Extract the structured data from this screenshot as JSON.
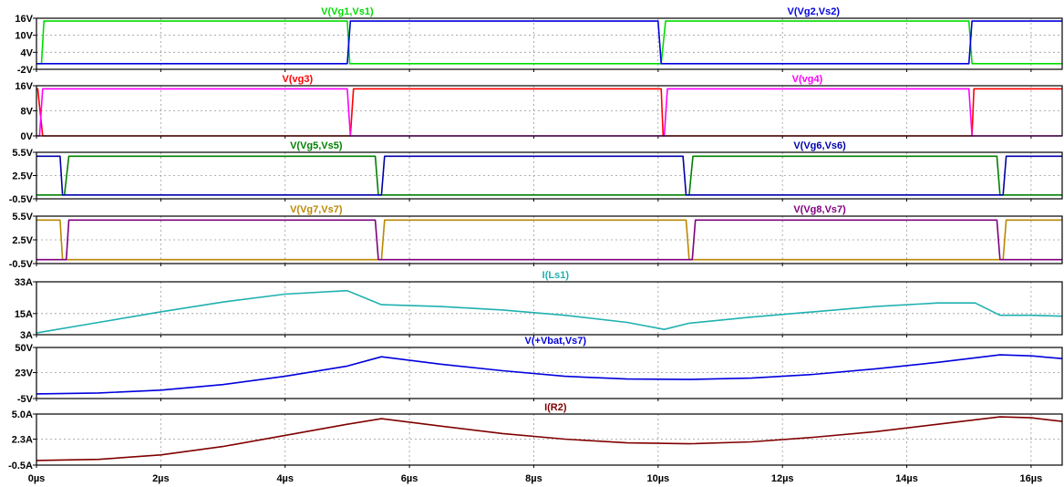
{
  "chart_data": {
    "type": "line",
    "x_unit": "µs",
    "xlim": [
      0,
      16.5
    ],
    "x_ticks": [
      0,
      2,
      4,
      6,
      8,
      10,
      12,
      14,
      16
    ],
    "x_tick_labels": [
      "0µs",
      "2µs",
      "4µs",
      "6µs",
      "8µs",
      "10µs",
      "12µs",
      "14µs",
      "16µs"
    ],
    "grid": true,
    "panes": [
      {
        "ylim": [
          -2,
          16
        ],
        "y_ticks": [
          {
            "value": 16,
            "label": "16V"
          },
          {
            "value": 10,
            "label": "10V"
          },
          {
            "value": 4,
            "label": "4V"
          },
          {
            "value": -2,
            "label": "-2V"
          }
        ],
        "series": [
          {
            "name": "V(Vg1,Vs1)",
            "color": "#00dd00",
            "label_at": 5.0,
            "x": [
              0,
              0.08,
              0.12,
              5.0,
              5.04,
              10.05,
              10.12,
              15.0,
              15.05,
              16.5
            ],
            "y": [
              0,
              0,
              15,
              15,
              0,
              0,
              15,
              15,
              0,
              0
            ]
          },
          {
            "name": "V(Vg2,Vs2)",
            "color": "#0000dd",
            "label_at": 12.5,
            "x": [
              0,
              5.0,
              5.05,
              10.0,
              10.05,
              15.0,
              15.05,
              16.5
            ],
            "y": [
              0,
              0,
              15,
              15,
              0,
              0,
              15,
              15
            ]
          }
        ]
      },
      {
        "ylim": [
          0,
          16
        ],
        "y_ticks": [
          {
            "value": 16,
            "label": "16V"
          },
          {
            "value": 8,
            "label": "8V"
          },
          {
            "value": 0,
            "label": "0V"
          }
        ],
        "series": [
          {
            "name": "V(vg3)",
            "color": "#ff0000",
            "label_at": 4.2,
            "x": [
              0,
              0.02,
              0.1,
              5.05,
              5.1,
              10.05,
              10.08,
              15.05,
              15.08,
              16.5
            ],
            "y": [
              15,
              15,
              0,
              0,
              15,
              15,
              0,
              0,
              15,
              15
            ]
          },
          {
            "name": "V(vg4)",
            "color": "#ff00ff",
            "label_at": 12.4,
            "x": [
              0,
              0.05,
              0.1,
              5.0,
              5.05,
              10.1,
              10.15,
              15.0,
              15.05,
              16.5
            ],
            "y": [
              0,
              0,
              15,
              15,
              0,
              0,
              15,
              15,
              0,
              0
            ]
          }
        ]
      },
      {
        "ylim": [
          -0.5,
          5.5
        ],
        "y_ticks": [
          {
            "value": 5.5,
            "label": "5.5V"
          },
          {
            "value": 2.5,
            "label": "2.5V"
          },
          {
            "value": -0.5,
            "label": "-0.5V"
          }
        ],
        "series": [
          {
            "name": "V(Vg5,Vs5)",
            "color": "#008000",
            "label_at": 4.5,
            "x": [
              0,
              0.45,
              0.52,
              5.45,
              5.5,
              10.5,
              10.56,
              15.45,
              15.5,
              16.5
            ],
            "y": [
              0,
              0,
              5,
              5,
              0,
              0,
              5,
              5,
              0,
              0
            ]
          },
          {
            "name": "V(Vg6,Vs6)",
            "color": "#0000aa",
            "label_at": 12.6,
            "x": [
              0,
              0.38,
              0.42,
              5.55,
              5.6,
              10.4,
              10.45,
              15.55,
              15.6,
              16.5
            ],
            "y": [
              5,
              5,
              0,
              0,
              5,
              5,
              0,
              0,
              5,
              5
            ]
          }
        ]
      },
      {
        "ylim": [
          -0.5,
          5.5
        ],
        "y_ticks": [
          {
            "value": 5.5,
            "label": "5.5V"
          },
          {
            "value": 2.5,
            "label": "2.5V"
          },
          {
            "value": -0.5,
            "label": "-0.5V"
          }
        ],
        "series": [
          {
            "name": "V(Vg7,Vs7)",
            "color": "#bb8800",
            "label_at": 4.5,
            "x": [
              0,
              0.38,
              0.42,
              5.55,
              5.6,
              10.45,
              10.5,
              15.55,
              15.6,
              16.5
            ],
            "y": [
              5,
              5,
              0,
              0,
              5,
              5,
              0,
              0,
              5,
              5
            ]
          },
          {
            "name": "V(Vg8,Vs7)",
            "color": "#800080",
            "label_at": 12.6,
            "x": [
              0,
              0.48,
              0.52,
              5.45,
              5.5,
              10.55,
              10.6,
              15.45,
              15.5,
              16.5
            ],
            "y": [
              0,
              0,
              5,
              5,
              0,
              0,
              5,
              5,
              0,
              0
            ]
          }
        ]
      },
      {
        "ylim": [
          3,
          33
        ],
        "y_ticks": [
          {
            "value": 33,
            "label": "33A"
          },
          {
            "value": 15,
            "label": "15A"
          },
          {
            "value": 3,
            "label": "3A"
          }
        ],
        "series": [
          {
            "name": "I(Ls1)",
            "color": "#20b0b0",
            "label_at": 8.35,
            "x": [
              0,
              1,
              2,
              3,
              4,
              5.0,
              5.55,
              6.5,
              7.5,
              8.5,
              9.5,
              10.1,
              10.5,
              11.5,
              12.5,
              13.5,
              14.5,
              15.1,
              15.5,
              16.0,
              16.5
            ],
            "y": [
              4,
              10,
              16,
              21.5,
              26,
              28,
              20,
              19,
              17,
              14,
              10,
              6,
              9.5,
              13,
              16,
              19,
              21,
              21,
              14,
              14,
              13.5
            ]
          }
        ]
      },
      {
        "ylim": [
          -5,
          50
        ],
        "y_ticks": [
          {
            "value": 50,
            "label": "50V"
          },
          {
            "value": 23,
            "label": "23V"
          },
          {
            "value": -5,
            "label": "-5V"
          }
        ],
        "series": [
          {
            "name": "V(+Vbat,Vs7)",
            "color": "#0000dd",
            "label_at": 8.35,
            "x": [
              0,
              1,
              2,
              3,
              4,
              5,
              5.55,
              6.5,
              7.5,
              8.5,
              9.5,
              10.5,
              11.5,
              12.5,
              13.5,
              14.5,
              15.5,
              16.0,
              16.5
            ],
            "y": [
              0,
              1,
              4,
              10,
              19,
              30,
              40,
              32,
              25,
              19,
              16,
              15.5,
              17,
              21,
              27,
              34,
              42,
              41,
              38
            ]
          }
        ]
      },
      {
        "ylim": [
          -0.5,
          5.0
        ],
        "y_ticks": [
          {
            "value": 5.0,
            "label": "5.0A"
          },
          {
            "value": 2.3,
            "label": "2.3A"
          },
          {
            "value": -0.5,
            "label": "-0.5A"
          }
        ],
        "series": [
          {
            "name": "I(R2)",
            "color": "#800000",
            "label_at": 8.35,
            "x": [
              0,
              1,
              2,
              3,
              4,
              5,
              5.55,
              6.5,
              7.5,
              8.5,
              9.5,
              10.5,
              11.5,
              12.5,
              13.5,
              14.5,
              15.5,
              16.0,
              16.5
            ],
            "y": [
              0,
              0.12,
              0.6,
              1.5,
              2.7,
              3.9,
              4.5,
              3.7,
              2.9,
              2.3,
              1.9,
              1.8,
              2.0,
              2.5,
              3.1,
              3.9,
              4.7,
              4.6,
              4.2
            ]
          }
        ]
      }
    ]
  }
}
